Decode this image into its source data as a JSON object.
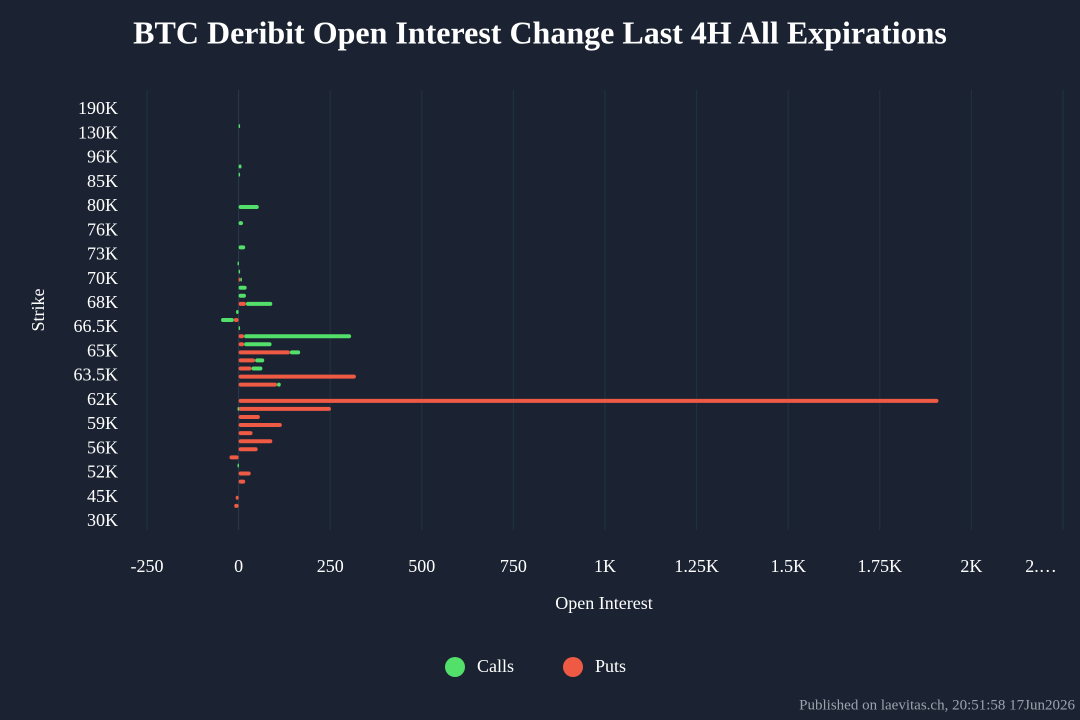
{
  "chart_data": {
    "type": "bar",
    "orientation": "horizontal",
    "barmode": "relative",
    "title": "BTC Deribit Open Interest Change Last 4H All Expirations",
    "x_label": "Open Interest",
    "y_label": "Strike",
    "footer": "Published on laevitas.ch, 20:51:58 17Jun2026",
    "categories": [
      "190K",
      null,
      null,
      "130K",
      null,
      null,
      "96K",
      null,
      null,
      "85K",
      null,
      null,
      "80K",
      null,
      null,
      "76K",
      null,
      null,
      "73K",
      null,
      null,
      "70K",
      null,
      null,
      "68K",
      null,
      null,
      "66.5K",
      null,
      null,
      "65K",
      null,
      null,
      "63.5K",
      null,
      null,
      "62K",
      null,
      null,
      "59K",
      null,
      null,
      "56K",
      null,
      null,
      "52K",
      null,
      null,
      "45K",
      null,
      null,
      "30K"
    ],
    "series": [
      {
        "name": "Puts",
        "color": "#ef5a45",
        "values": [
          0,
          0,
          0,
          0,
          0,
          0,
          0,
          0,
          0,
          0,
          0,
          0,
          0,
          0,
          0,
          0,
          0,
          0,
          0,
          0,
          0,
          5,
          0,
          0,
          20,
          0,
          -13,
          0,
          15,
          15,
          140,
          45,
          35,
          320,
          105,
          0,
          1910,
          252,
          58,
          118,
          38,
          92,
          52,
          -25,
          0,
          33,
          18,
          0,
          -8,
          -12,
          0,
          0
        ]
      },
      {
        "name": "Calls",
        "color": "#52e06a",
        "values": [
          0,
          0,
          3,
          0,
          0,
          0,
          0,
          8,
          3,
          0,
          0,
          0,
          55,
          0,
          12,
          0,
          0,
          18,
          0,
          -3,
          3,
          3,
          22,
          20,
          72,
          -7,
          -35,
          3,
          292,
          75,
          28,
          25,
          30,
          0,
          10,
          0,
          0,
          -3,
          0,
          0,
          0,
          0,
          0,
          0,
          -3,
          0,
          0,
          0,
          0,
          0,
          0,
          0
        ]
      }
    ],
    "legend_order": [
      1,
      0
    ],
    "xlim": [
      -250,
      2250
    ],
    "xticks": [
      -250,
      0,
      250,
      500,
      750,
      {
        "value": 1000,
        "label": "1K"
      },
      {
        "value": 1250,
        "label": "1.25K"
      },
      {
        "value": 1500,
        "label": "1.5K"
      },
      {
        "value": 1750,
        "label": "1.75K"
      },
      {
        "value": 2000,
        "label": "2K"
      },
      {
        "value": 2250,
        "label": "2.…"
      }
    ],
    "grid": true
  }
}
